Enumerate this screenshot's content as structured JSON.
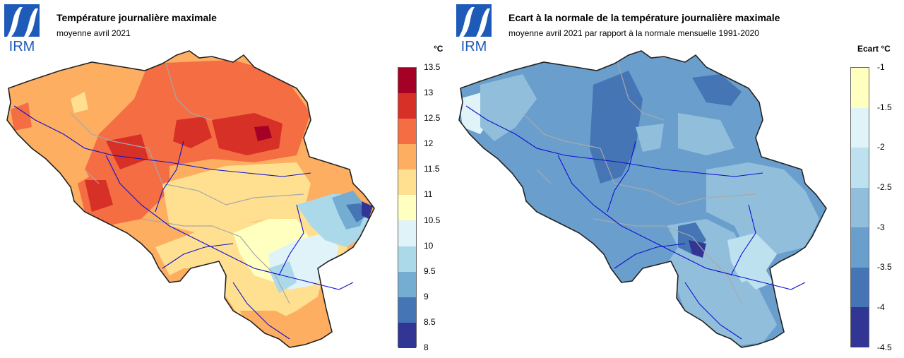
{
  "logo_text": "IRM",
  "left": {
    "title": "Température journalière maximale",
    "subtitle": "moyenne avril 2021",
    "unit": "°C",
    "legend": {
      "ticks": [
        "13.5",
        "13",
        "12.5",
        "12",
        "11.5",
        "11",
        "10.5",
        "10",
        "9.5",
        "9",
        "8.5",
        "8"
      ],
      "colors": [
        "#a50026",
        "#d73027",
        "#f46d43",
        "#fdae61",
        "#fee090",
        "#ffffbf",
        "#e0f3f8",
        "#abd9e9",
        "#74add1",
        "#4575b4",
        "#313695"
      ]
    }
  },
  "right": {
    "title": "Ecart à la normale de la température journalière maximale",
    "subtitle": "moyenne avril 2021 par rapport à la normale mensuelle 1991-2020",
    "unit": "Ecart  °C",
    "legend": {
      "ticks": [
        "-1",
        "-1.5",
        "-2",
        "-2.5",
        "-3",
        "-3.5",
        "-4",
        "-4.5"
      ],
      "colors": [
        "#ffffbf",
        "#e0f3f8",
        "#bde1ee",
        "#91bfdb",
        "#6a9fcd",
        "#4575b4",
        "#313695"
      ]
    }
  },
  "colors": {
    "logo_blue": "#1e5bb8",
    "border": "#222222",
    "river": "#1010d0",
    "region_line": "#a8a8a8"
  }
}
